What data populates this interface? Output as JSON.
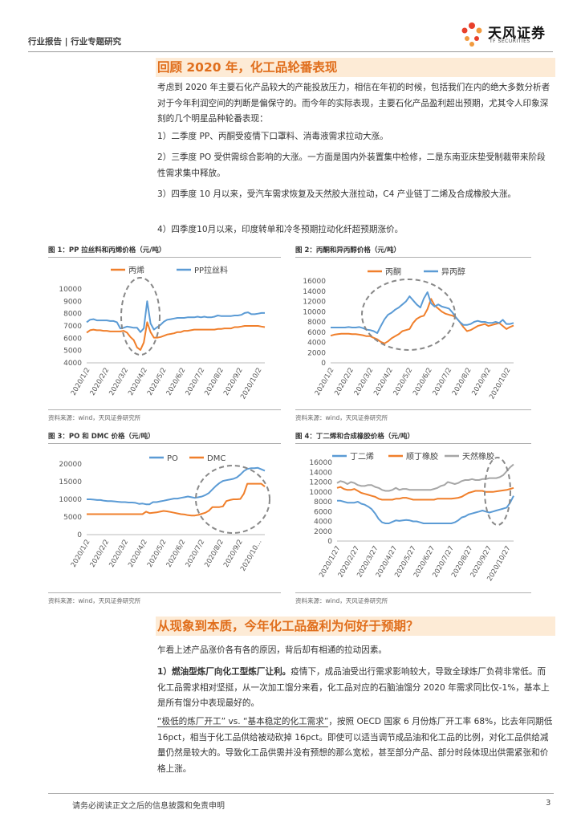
{
  "header": {
    "left": "行业报告 | 行业专题研究",
    "logo_main": "天风证券",
    "logo_sub": "TF SECURITIES"
  },
  "section1": {
    "title": "回顾 2020 年，化工品轮番表现",
    "intro": "考虑到 2020 年主要石化产品较大的产能投放压力，相信在年初的时候，包括我们在内的绝大多数分析者对于今年利润空间的判断是偏保守的。而今年的实际表现，主要石化产品盈利超出预期，尤其令人印象深刻的几个明星品种轮番表现：",
    "items": [
      "1）二季度 PP、丙酮受疫情下口罩料、消毒液需求拉动大涨。",
      "2）三季度 PO 受供需综合影响的大涨。一方面是国内外装置集中检修，二是东南亚床垫受制裁带来阶段性需求集中释放。",
      "3）四季度 10 月以来，受汽车需求恢复及天然胶大涨拉动，C4 产业链丁二烯及合成橡胶大涨。",
      "4）四季度10月以来，印度转单和冷冬预期拉动化纤超预期涨价。"
    ]
  },
  "source_text": "资料来源：wind，天风证券研究所",
  "chart_data": [
    {
      "type": "line",
      "title": "图 1：PP 拉丝料和丙烯价格（元/吨）",
      "series": [
        {
          "name": "丙烯",
          "color": "#f07f2b",
          "values": [
            6450,
            6650,
            6700,
            6650,
            6650,
            6600,
            6600,
            6550,
            6550,
            6550,
            6550,
            6600,
            6450,
            6100,
            5850,
            5250,
            5050,
            5650,
            7300,
            6500,
            6050,
            6050,
            6100,
            6200,
            6300,
            6350,
            6400,
            6500,
            6500,
            6600,
            6600,
            6650,
            6700,
            6700,
            6700,
            6700,
            6700,
            6700,
            6700,
            6750,
            6750,
            6800,
            6800,
            6800,
            6900,
            6900,
            6950,
            7000,
            7000,
            7000,
            7000,
            7000,
            6950,
            6900
          ]
        },
        {
          "name": "PP拉丝料",
          "color": "#5b9bd5",
          "values": [
            7300,
            7500,
            7550,
            7450,
            7450,
            7450,
            7450,
            7400,
            7400,
            7300,
            6800,
            6850,
            6950,
            6900,
            6850,
            6850,
            6500,
            6800,
            9000,
            7200,
            6700,
            6900,
            7100,
            7350,
            7500,
            7550,
            7600,
            7650,
            7650,
            7650,
            7700,
            7700,
            7700,
            7750,
            7700,
            7750,
            7700,
            7700,
            7750,
            7850,
            7800,
            7800,
            7800,
            7800,
            7850,
            7850,
            7900,
            8050,
            8100,
            7950,
            7950,
            8000,
            8050,
            8050
          ]
        }
      ],
      "xlabels": [
        "2020/1/2",
        "2020/2/2",
        "2020/3/2",
        "2020/4/2",
        "2020/5/2",
        "2020/6/2",
        "2020/7/2",
        "2020/8/2",
        "2020/9/2",
        "2020/10/2"
      ],
      "yticks": [
        "10000",
        "9000",
        "8000",
        "7000",
        "6000",
        "5000",
        "4000"
      ],
      "ylim": [
        4000,
        10000
      ]
    },
    {
      "type": "line",
      "title": "图 2：丙酮和异丙醇价格（元/吨）",
      "series": [
        {
          "name": "丙酮",
          "color": "#f07f2b",
          "values": [
            5300,
            5500,
            5600,
            5700,
            5700,
            5700,
            5600,
            5600,
            5500,
            5400,
            5200,
            5200,
            4900,
            4600,
            4100,
            3800,
            4200,
            4800,
            5200,
            5600,
            6200,
            6400,
            6600,
            7800,
            8600,
            9000,
            9200,
            10500,
            12500,
            11200,
            10600,
            10000,
            9600,
            9400,
            9200,
            8800,
            8000,
            7000,
            6200,
            6400,
            6800,
            7200,
            7400,
            7600,
            7200,
            7400,
            7600,
            7800,
            7200,
            6600,
            7000,
            7300
          ]
        },
        {
          "name": "异丙醇",
          "color": "#5b9bd5",
          "values": [
            6900,
            6900,
            6900,
            6900,
            6900,
            7000,
            6900,
            6900,
            7000,
            6800,
            6500,
            6400,
            6200,
            5800,
            7200,
            8500,
            9400,
            9800,
            10400,
            10800,
            11400,
            12000,
            13000,
            12200,
            11400,
            10800,
            12600,
            13800,
            11600,
            11000,
            11400,
            11000,
            10800,
            10600,
            9800,
            8800,
            8000,
            7400,
            7400,
            7600,
            8000,
            8200,
            8000,
            8000,
            7800,
            7800,
            8000,
            7800,
            8400,
            7600,
            7600,
            7800
          ]
        }
      ],
      "xlabels": [
        "2020/1/2",
        "2020/2/2",
        "2020/3/2",
        "2020/4/2",
        "2020/5/2",
        "2020/6/2",
        "2020/7/2",
        "2020/8/2",
        "2020/9/2",
        "2020/10/2"
      ],
      "yticks": [
        "16000",
        "14000",
        "12000",
        "10000",
        "8000",
        "6000",
        "4000",
        "2000",
        "0"
      ],
      "ylim": [
        0,
        16000
      ]
    },
    {
      "type": "line",
      "title": "图 3：PO 和 DMC 价格（元/吨）",
      "series": [
        {
          "name": "PO",
          "color": "#5b9bd5",
          "values": [
            10000,
            10000,
            9900,
            9800,
            9800,
            9600,
            9500,
            9500,
            9400,
            9300,
            9200,
            9200,
            9100,
            9100,
            9000,
            8700,
            8800,
            8600,
            8600,
            9200,
            9200,
            9400,
            9600,
            9800,
            10000,
            10200,
            10200,
            10400,
            10600,
            10800,
            10600,
            10400,
            10600,
            10800,
            11200,
            11800,
            12800,
            13800,
            14600,
            15200,
            15400,
            15600,
            15800,
            16200,
            17000,
            18000,
            18600,
            18800,
            18800,
            18900,
            18500,
            18100
          ]
        },
        {
          "name": "DMC",
          "color": "#f07f2b",
          "values": [
            5800,
            5800,
            5800,
            5800,
            5800,
            5800,
            5800,
            5800,
            5800,
            5800,
            5800,
            5800,
            5800,
            5800,
            5800,
            5800,
            5800,
            6500,
            6100,
            6200,
            6300,
            6500,
            6700,
            6600,
            6400,
            6200,
            6000,
            5800,
            5700,
            5500,
            5400,
            5400,
            5600,
            5900,
            6200,
            6800,
            7800,
            7800,
            7800,
            8000,
            9500,
            9800,
            10000,
            10000,
            10100,
            11600,
            14400,
            14400,
            14400,
            14400,
            14400,
            13600
          ]
        }
      ],
      "xlabels": [
        "2020/1/2",
        "2020/2/2",
        "2020/3/2",
        "2020/4/2",
        "2020/5/2",
        "2020/6/2",
        "2020/7/2",
        "2020/8/2",
        "2020/9/2",
        "2020/10…"
      ],
      "yticks": [
        "20000",
        "15000",
        "10000",
        "5000",
        "0"
      ],
      "ylim": [
        0,
        20000
      ]
    },
    {
      "type": "line",
      "title": "图 4：丁二烯和合成橡胶价格（元/吨）",
      "series": [
        {
          "name": "丁二烯",
          "color": "#5b9bd5",
          "values": [
            8200,
            8200,
            8000,
            7800,
            7800,
            7800,
            8000,
            7600,
            7400,
            7000,
            6500,
            5600,
            4500,
            3800,
            3600,
            3600,
            3900,
            4200,
            4100,
            4200,
            4300,
            4200,
            4000,
            4000,
            3800,
            3600,
            3600,
            3600,
            3600,
            3600,
            3600,
            3600,
            3600,
            3600,
            3800,
            4200,
            4800,
            5000,
            5400,
            5600,
            5800,
            6000,
            6200,
            6000,
            5800,
            6000,
            6200,
            6400,
            6600,
            6800,
            7800,
            9200
          ]
        },
        {
          "name": "顺丁橡胶",
          "color": "#f07f2b",
          "values": [
            10800,
            11000,
            10600,
            10400,
            10400,
            10600,
            10200,
            9800,
            9600,
            9400,
            9200,
            9000,
            8600,
            8400,
            8400,
            8400,
            8400,
            8600,
            8600,
            8800,
            8800,
            8600,
            8400,
            8400,
            8400,
            8400,
            8400,
            8400,
            8400,
            8600,
            8600,
            8600,
            8600,
            8600,
            8700,
            8800,
            9000,
            9400,
            9800,
            10000,
            10200,
            10200,
            10200,
            10000,
            10000,
            10000,
            10100,
            10200,
            10300,
            10400,
            10600,
            10800
          ]
        },
        {
          "name": "天然橡胶",
          "color": "#a6a6a6",
          "values": [
            11800,
            12200,
            12000,
            11600,
            12000,
            11800,
            11400,
            11200,
            11200,
            11400,
            11400,
            11000,
            10800,
            10400,
            10200,
            10200,
            10400,
            10800,
            10400,
            10600,
            10600,
            10400,
            10400,
            10400,
            10400,
            10400,
            10400,
            10400,
            10600,
            10800,
            11200,
            11400,
            12000,
            11800,
            11600,
            11800,
            12200,
            12400,
            12400,
            12600,
            12400,
            12400,
            12600,
            12600,
            12800,
            12800,
            12800,
            13000,
            13400,
            14200,
            15000,
            15600
          ]
        }
      ],
      "xlabels": [
        "2020/1/27",
        "2020/2/27",
        "2020/3/27",
        "2020/4/27",
        "2020/5/27",
        "2020/6/27",
        "2020/7/27",
        "2020/8/27",
        "2020/9/27",
        "2020/10/27"
      ],
      "yticks": [
        "16000",
        "14000",
        "12000",
        "10000",
        "8000",
        "6000",
        "4000",
        "2000",
        "0"
      ],
      "ylim": [
        0,
        16000
      ]
    }
  ],
  "section2": {
    "title": "从现象到本质，今年化工品盈利为何好于预期？",
    "intro": "乍看上述产品涨价各有各的原因，背后却有相通的拉动因素。",
    "p1_bold": "1）燃油型炼厂向化工型炼厂让利。",
    "p1_rest": "疫情下，成品油受出行需求影响较大，导致全球炼厂负荷非常低。而化工品需求相对坚挺，从一次加工馏分来看，化工品对应的石脑油馏分 2020 年需求同比仅-1%，基本上是所有馏分中表现最好的。",
    "p2_underline": "“极低的炼厂开工” vs. “基本稳定的化工需求”",
    "p2_rest": "，按照 OECD 国家 6 月份炼厂开工率 68%，比去年同期低 16pct，相当于化工品供给被动砍掉 16pct。即使可以适当调节成品油和化工品的比例，对化工品供给减量仍然是较大的。导致化工品供需并没有预想的那么宽松，甚至部分产品、部分时段体现出供需紧张和价格上涨。"
  },
  "footer": {
    "disclaimer": "请务必阅读正文之后的信息披露和免责申明",
    "page": "3"
  }
}
